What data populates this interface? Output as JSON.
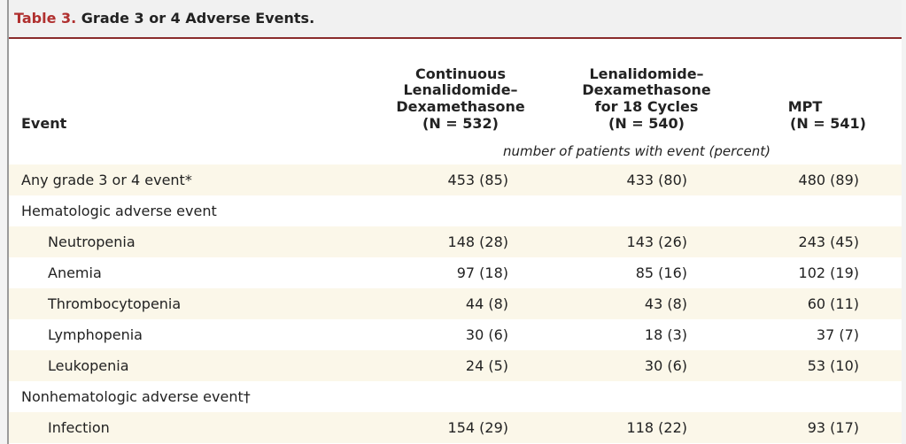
{
  "table": {
    "label": "Table 3.",
    "title": "Grade 3 or 4 Adverse Events.",
    "headers": {
      "event": "Event",
      "col1": [
        "Continuous",
        "Lenalidomide–",
        "Dexamethasone",
        "(N = 532)"
      ],
      "col2": [
        "Lenalidomide–",
        "Dexamethasone",
        "for 18 Cycles",
        "(N = 540)"
      ],
      "col3": [
        "MPT",
        "(N = 541)"
      ]
    },
    "subheader": "number of patients with event (percent)",
    "rows": [
      {
        "event": "Any grade 3 or 4 event*",
        "c1": "453 (85)",
        "c2": "433 (80)",
        "c3": "480 (89)"
      },
      {
        "event": "Hematologic adverse event",
        "c1": "",
        "c2": "",
        "c3": ""
      },
      {
        "event": "Neutropenia",
        "c1": "148 (28)",
        "c2": "143 (26)",
        "c3": "243 (45)"
      },
      {
        "event": "Anemia",
        "c1": "97 (18)",
        "c2": "85 (16)",
        "c3": "102 (19)"
      },
      {
        "event": "Thrombocytopenia",
        "c1": "44 (8)",
        "c2": "43 (8)",
        "c3": "60 (11)"
      },
      {
        "event": "Lymphopenia",
        "c1": "30 (6)",
        "c2": "18 (3)",
        "c3": "37 (7)"
      },
      {
        "event": "Leukopenia",
        "c1": "24 (5)",
        "c2": "30 (6)",
        "c3": "53 (10)"
      },
      {
        "event": "Nonhematologic adverse event†",
        "c1": "",
        "c2": "",
        "c3": ""
      },
      {
        "event": "Infection",
        "c1": "154 (29)",
        "c2": "118 (22)",
        "c3": "93 (17)"
      }
    ]
  }
}
